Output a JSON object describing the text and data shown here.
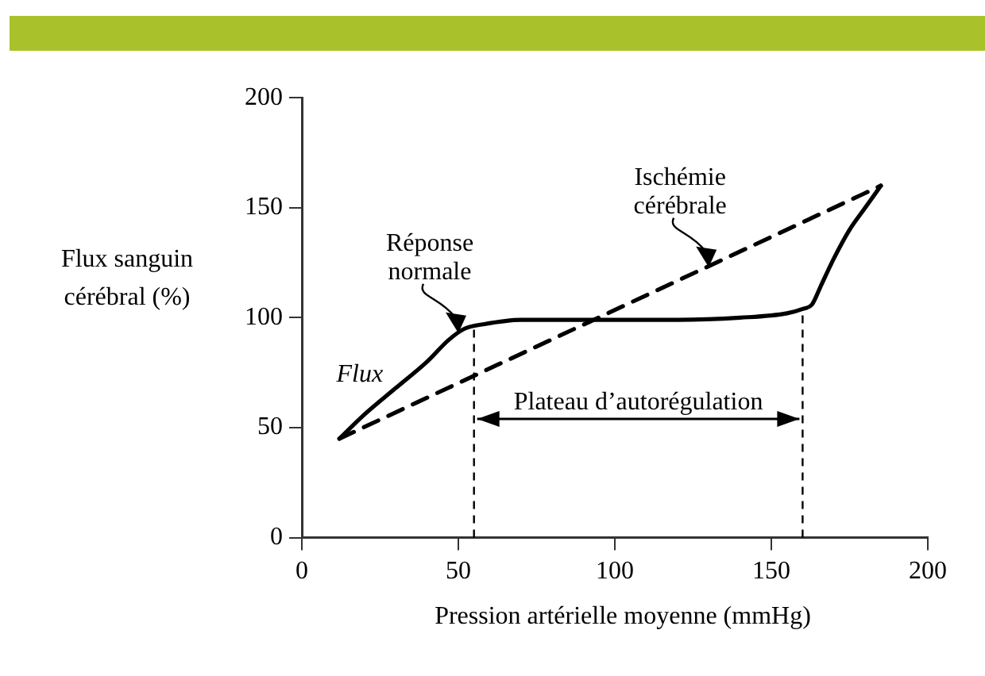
{
  "chart_data": {
    "type": "line",
    "xlabel": "Pression artérielle moyenne (mmHg)",
    "ylabel": "Flux sanguin cérébral (%)",
    "xlim": [
      0,
      200
    ],
    "xticks": [
      0,
      50,
      100,
      150,
      200
    ],
    "ylim": [
      0,
      200
    ],
    "yticks": [
      0,
      50,
      100,
      150,
      200
    ],
    "grid": false,
    "legend": false,
    "marker": "none",
    "series": [
      {
        "name": "Flux",
        "color": "#000000",
        "line_style": "solid",
        "x": [
          12,
          20,
          30,
          40,
          47,
          52,
          58,
          70,
          85,
          100,
          120,
          140,
          155,
          160,
          163,
          166,
          170,
          175,
          180,
          185
        ],
        "values": [
          45,
          56,
          68,
          80,
          90,
          95,
          97,
          99,
          99,
          99,
          99,
          100,
          102,
          104,
          106,
          115,
          127,
          140,
          150,
          160
        ]
      },
      {
        "color": "#000000",
        "line_style": "dashed",
        "x": [
          12,
          185
        ],
        "values": [
          45,
          160
        ]
      }
    ],
    "ref_lines": [
      {
        "axis": "x",
        "value": 55,
        "line_style": "dashed",
        "color": "#000000"
      },
      {
        "axis": "x",
        "value": 160,
        "line_style": "dashed",
        "color": "#000000"
      }
    ],
    "annotations": [
      {
        "text": "Réponse normale",
        "x": 50,
        "y": 93
      },
      {
        "text": "Ischémie cérébrale",
        "x": 130,
        "y": 123
      },
      "Plateau d’autorégulation"
    ]
  }
}
